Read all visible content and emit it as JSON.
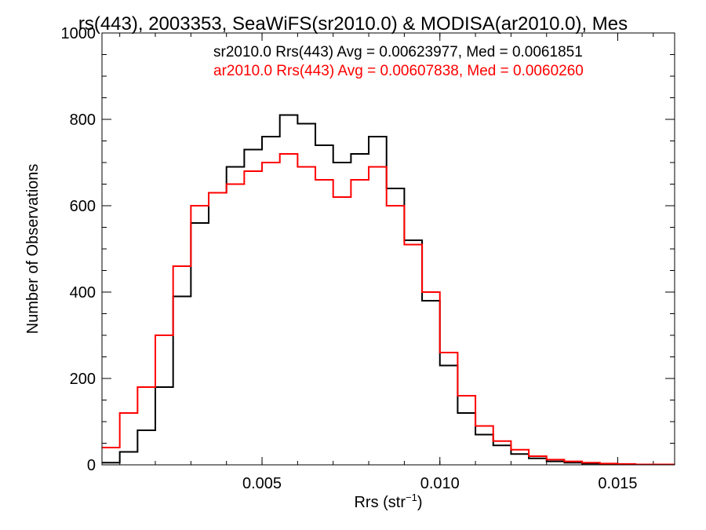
{
  "chart_data": {
    "type": "line",
    "title": "rs(443), 2003353, SeaWiFS(sr2010.0) & MODISA(ar2010.0), Mes",
    "xlabel": "Rrs (str",
    "xlabel_sup": "−1",
    "xlabel_close": ")",
    "ylabel": "Number of Observations",
    "xlim": [
      0.0005,
      0.0166
    ],
    "ylim": [
      0,
      1000
    ],
    "xticks": [
      {
        "value": 0.005,
        "label": "0.005"
      },
      {
        "value": 0.01,
        "label": "0.010"
      },
      {
        "value": 0.015,
        "label": "0.015"
      }
    ],
    "yticks": [
      {
        "value": 0,
        "label": "0"
      },
      {
        "value": 200,
        "label": "200"
      },
      {
        "value": 400,
        "label": "400"
      },
      {
        "value": 600,
        "label": "600"
      },
      {
        "value": 800,
        "label": "800"
      },
      {
        "value": 1000,
        "label": "1000"
      }
    ],
    "legend_placement": "top-right",
    "step": true,
    "series": [
      {
        "name": "sr2010.0 Rrs(443) Avg = 0.00623977, Med = 0.0061851",
        "color": "#000000",
        "x": [
          0.0005,
          0.001,
          0.0015,
          0.002,
          0.0025,
          0.003,
          0.0035,
          0.004,
          0.0045,
          0.005,
          0.0055,
          0.006,
          0.0065,
          0.007,
          0.0075,
          0.008,
          0.0085,
          0.009,
          0.0095,
          0.01,
          0.0105,
          0.011,
          0.0115,
          0.012,
          0.0125,
          0.013,
          0.0135,
          0.014,
          0.0145,
          0.015,
          0.0155,
          0.016,
          0.0166
        ],
        "y": [
          5,
          30,
          80,
          180,
          390,
          560,
          630,
          690,
          730,
          760,
          810,
          790,
          740,
          700,
          720,
          760,
          640,
          520,
          380,
          230,
          120,
          70,
          45,
          25,
          15,
          8,
          5,
          3,
          2,
          1,
          1,
          0,
          0
        ]
      },
      {
        "name": "ar2010.0 Rrs(443) Avg = 0.00607838, Med = 0.0060260",
        "color": "#ff0000",
        "x": [
          0.0005,
          0.001,
          0.0015,
          0.002,
          0.0025,
          0.003,
          0.0035,
          0.004,
          0.0045,
          0.005,
          0.0055,
          0.006,
          0.0065,
          0.007,
          0.0075,
          0.008,
          0.0085,
          0.009,
          0.0095,
          0.01,
          0.0105,
          0.011,
          0.0115,
          0.012,
          0.0125,
          0.013,
          0.0135,
          0.014,
          0.0145,
          0.015,
          0.0155,
          0.016,
          0.0166
        ],
        "y": [
          40,
          120,
          180,
          300,
          460,
          600,
          630,
          650,
          680,
          700,
          720,
          690,
          660,
          620,
          660,
          690,
          600,
          510,
          400,
          260,
          160,
          90,
          55,
          35,
          20,
          12,
          8,
          5,
          3,
          2,
          1,
          1,
          0
        ]
      }
    ]
  }
}
